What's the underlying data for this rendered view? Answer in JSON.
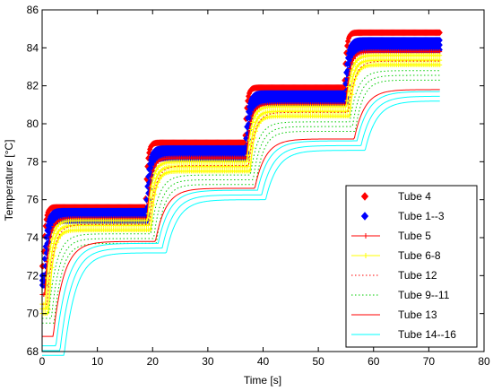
{
  "chart_data": {
    "type": "line",
    "xlabel": "Time [s]",
    "ylabel": "Temperature [°C]",
    "xlim": [
      0,
      80
    ],
    "ylim": [
      68,
      86
    ],
    "x_ticks": [
      0,
      10,
      20,
      30,
      40,
      50,
      60,
      70,
      80
    ],
    "y_ticks": [
      68,
      70,
      72,
      74,
      76,
      78,
      80,
      82,
      84,
      86
    ],
    "x_tick_labels": [
      "0",
      "10",
      "20",
      "30",
      "40",
      "50",
      "60",
      "70",
      "80"
    ],
    "y_tick_labels": [
      "68",
      "70",
      "72",
      "74",
      "76",
      "78",
      "80",
      "82",
      "84",
      "86"
    ],
    "grid": false,
    "legend_position": "bottom-right",
    "step_times": [
      0,
      18.5,
      36.5,
      54.5
    ],
    "x_end": 72,
    "series": [
      {
        "name": "Tube 4",
        "color": "#ff0000",
        "style": "markers",
        "marker": "diamond",
        "start": 72.5,
        "levels": [
          75.6,
          79.0,
          81.9,
          84.8
        ],
        "delay": 0.2,
        "tau": 0.35,
        "repeat": 1
      },
      {
        "name": "Tube 1--3",
        "color": "#0000ff",
        "style": "markers",
        "marker": "diamond",
        "start": 72.0,
        "levels": [
          75.4,
          78.7,
          81.6,
          84.4
        ],
        "delay": 0.3,
        "tau": 0.5,
        "repeat": 3
      },
      {
        "name": "Tube 5",
        "color": "#ff0000",
        "style": "line-marker",
        "marker": "plus",
        "start": 71.0,
        "levels": [
          75.0,
          78.2,
          81.0,
          83.8
        ],
        "delay": 0.5,
        "tau": 0.7,
        "repeat": 1
      },
      {
        "name": "Tube 6-8",
        "color": "#ffff00",
        "style": "line-marker",
        "marker": "plus",
        "start": 70.5,
        "levels": [
          74.9,
          78.0,
          80.9,
          83.6
        ],
        "delay": 0.6,
        "tau": 0.8,
        "repeat": 3
      },
      {
        "name": "Tube 12",
        "color": "#ff0000",
        "style": "dotted",
        "start": 70.5,
        "levels": [
          74.7,
          77.8,
          80.6,
          83.3
        ],
        "delay": 0.9,
        "tau": 1.1,
        "repeat": 1
      },
      {
        "name": "Tube 9--11",
        "color": "#00cc00",
        "style": "dotted",
        "start": 70.0,
        "levels": [
          74.2,
          77.3,
          80.1,
          82.8
        ],
        "delay": 1.2,
        "tau": 1.4,
        "repeat": 3
      },
      {
        "name": "Tube 13",
        "color": "#ff0000",
        "style": "solid",
        "start": 68.8,
        "levels": [
          73.8,
          76.6,
          79.2,
          81.8
        ],
        "delay": 2.0,
        "tau": 1.9,
        "repeat": 1
      },
      {
        "name": "Tube 14--16",
        "color": "#00ffff",
        "style": "solid",
        "start": 68.3,
        "levels": [
          73.7,
          76.5,
          79.1,
          81.7
        ],
        "delay": 2.5,
        "tau": 2.1,
        "repeat": 3
      }
    ]
  }
}
